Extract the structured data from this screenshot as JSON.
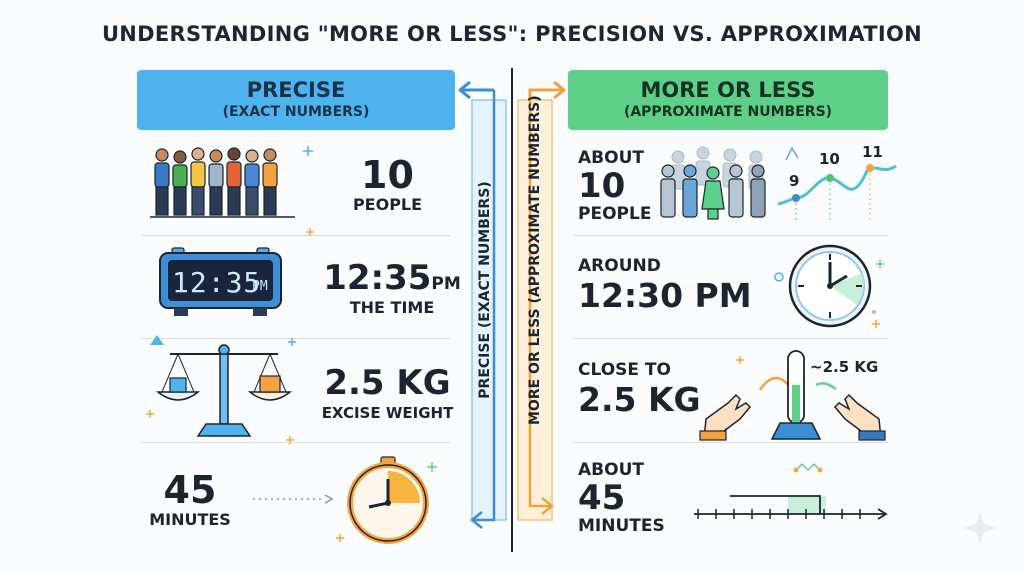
{
  "title": "UNDERSTANDING \"MORE OR LESS\": PRECISION VS. APPROXIMATION",
  "left_header": {
    "title": "PRECISE",
    "subtitle": "(EXACT NUMBERS)"
  },
  "right_header": {
    "title": "MORE OR LESS",
    "subtitle": "(APPROXIMATE NUMBERS)"
  },
  "center": {
    "left_label": "PRECISE (EXACT NUMBERS)",
    "right_label": "MORE OR LESS (APPROXIMATE NUMBERS)"
  },
  "left_rows": [
    {
      "value": "10",
      "caption": "PEOPLE",
      "icon": "people-group-icon"
    },
    {
      "value": "12:35",
      "unit": "PM",
      "caption": "THE TIME",
      "clock_display": "12:35",
      "clock_suffix": "PM",
      "icon": "digital-clock-icon"
    },
    {
      "value": "2.5 KG",
      "caption": "EXCISE WEIGHT",
      "icon": "balance-scale-icon"
    },
    {
      "value": "45",
      "caption": "MINUTES",
      "icon": "timer-clock-icon"
    }
  ],
  "right_rows": [
    {
      "prefix": "ABOUT",
      "value": "10",
      "caption": "PEOPLE",
      "graph_labels": [
        "9",
        "10",
        "11"
      ],
      "icon": "faded-crowd-icon"
    },
    {
      "prefix": "AROUND",
      "value": "12:30 PM",
      "icon": "analog-clock-icon"
    },
    {
      "prefix": "CLOSE TO",
      "value": "2.5 KG",
      "gauge_label": "~2.5 KG",
      "icon": "hands-gauge-icon"
    },
    {
      "prefix": "ABOUT",
      "value": "45",
      "caption": "MINUTES",
      "icon": "timeline-range-icon"
    }
  ],
  "colors": {
    "precise_blue": "#4fb3ee",
    "approx_green": "#5fd08a",
    "accent_orange": "#f4a340",
    "dark_navy": "#1b2430"
  }
}
